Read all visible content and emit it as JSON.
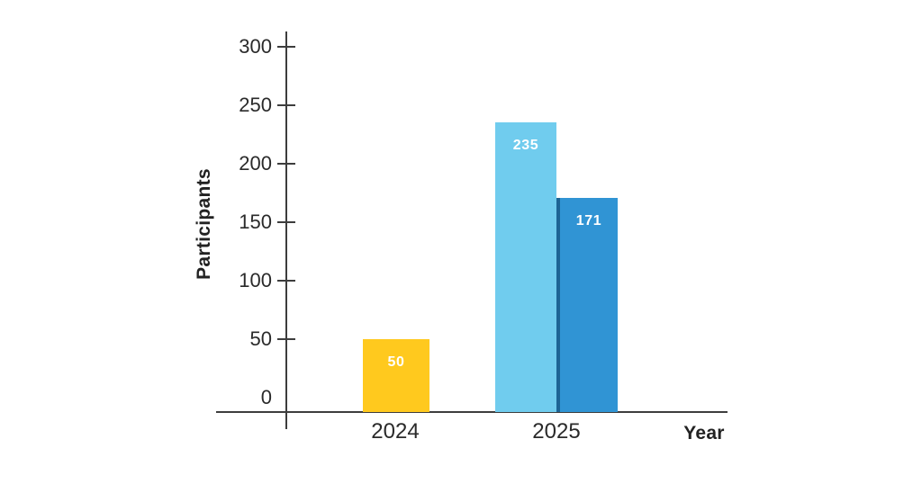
{
  "chart_data": {
    "type": "bar",
    "title": "",
    "xlabel": "Year",
    "ylabel": "Participants",
    "ylim": [
      0,
      300
    ],
    "yticks": [
      0,
      50,
      100,
      150,
      200,
      250,
      300
    ],
    "categories": [
      "2024",
      "2025"
    ],
    "bars": [
      {
        "category": "2024",
        "value": 50,
        "label": "50",
        "color": "#FFC91E"
      },
      {
        "category": "2025",
        "value": 235,
        "label": "235",
        "color": "#70CCEE"
      },
      {
        "category": "2025",
        "value": 171,
        "label": "171",
        "color": "#3094D4",
        "edge_color": "#1D6494"
      }
    ],
    "grid": false,
    "legend_position": "none",
    "colors": {
      "axis": "#3D3D3D",
      "tick_text": "#2A2A2A",
      "axis_title_text": "#222222",
      "bar_label_text": "#FFFFFF",
      "background": "#FFFFFF"
    }
  }
}
